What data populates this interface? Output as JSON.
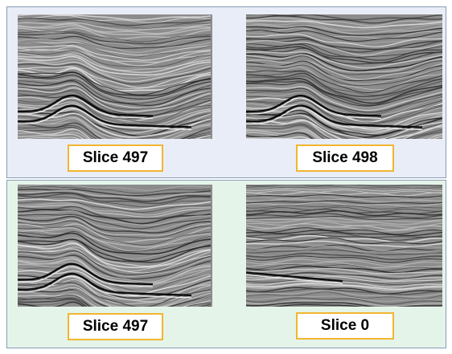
{
  "panels": [
    {
      "background": "#e9edf8",
      "items": [
        {
          "label": "Slice 497",
          "section_style": "anticline"
        },
        {
          "label": "Slice 498",
          "section_style": "anticline"
        }
      ]
    },
    {
      "background": "#e4f4e9",
      "items": [
        {
          "label": "Slice 497",
          "section_style": "anticline"
        },
        {
          "label": "Slice 0",
          "section_style": "flat-layers"
        }
      ]
    }
  ],
  "colors": {
    "label_border": "#f2b530",
    "panel_border": "#8a9db5"
  }
}
